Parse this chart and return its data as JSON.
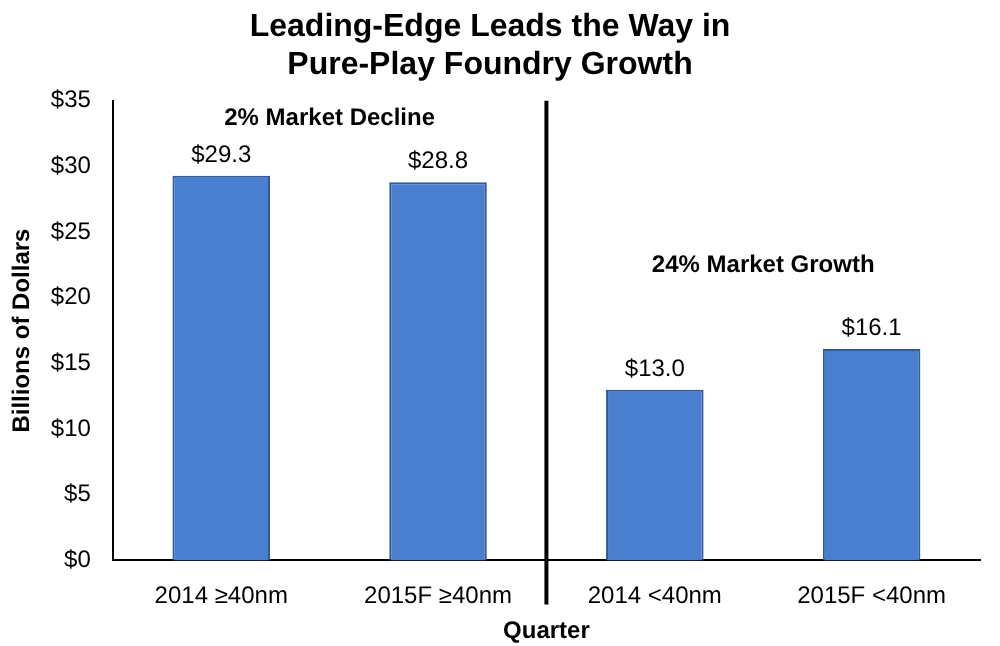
{
  "chart_data": {
    "type": "bar",
    "title": "Leading-Edge Leads the Way in\nPure-Play Foundry Growth",
    "categories": [
      "2014 ≥40nm",
      "2015F ≥40nm",
      "2014 <40nm",
      "2015F <40nm"
    ],
    "values": [
      29.3,
      28.8,
      13.0,
      16.1
    ],
    "value_labels": [
      "$29.3",
      "$28.8",
      "$13.0",
      "$16.1"
    ],
    "color": "#4a7ecf",
    "xlabel": "Quarter",
    "ylabel": "Billions of Dollars",
    "ylim": [
      0,
      35
    ],
    "yticks": [
      {
        "value": 0,
        "label": "$0"
      },
      {
        "value": 5,
        "label": "$5"
      },
      {
        "value": 10,
        "label": "$10"
      },
      {
        "value": 15,
        "label": "$15"
      },
      {
        "value": 20,
        "label": "$20"
      },
      {
        "value": 25,
        "label": "$25"
      },
      {
        "value": 30,
        "label": "$30"
      },
      {
        "value": 35,
        "label": "$35"
      }
    ],
    "annotations": [
      "2% Market Decline",
      "24% Market Growth"
    ],
    "grid": false,
    "legend": false
  }
}
